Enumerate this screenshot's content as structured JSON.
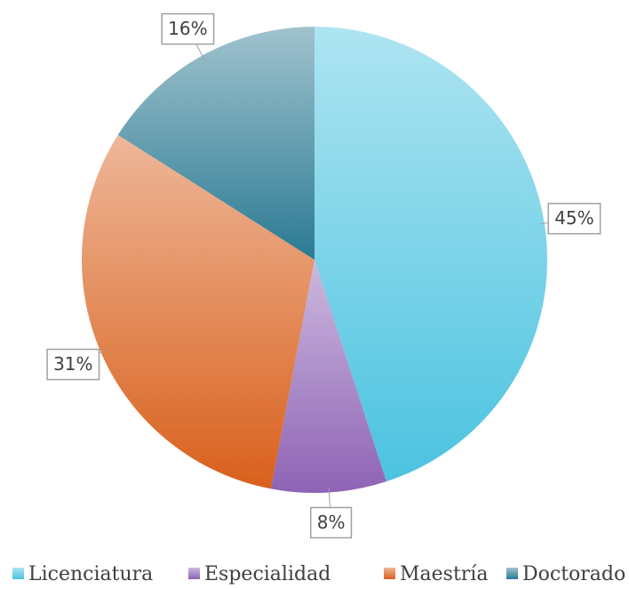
{
  "chart_data": {
    "type": "pie",
    "categories": [
      "Licenciatura",
      "Especialidad",
      "Maestría",
      "Doctorado"
    ],
    "values": [
      45,
      8,
      31,
      16
    ],
    "value_labels": [
      "45%",
      "8%",
      "31%",
      "16%"
    ],
    "colors": [
      "#4bc3e0",
      "#8e63b5",
      "#d9601c",
      "#2b7a93"
    ],
    "legend": "bottom"
  }
}
